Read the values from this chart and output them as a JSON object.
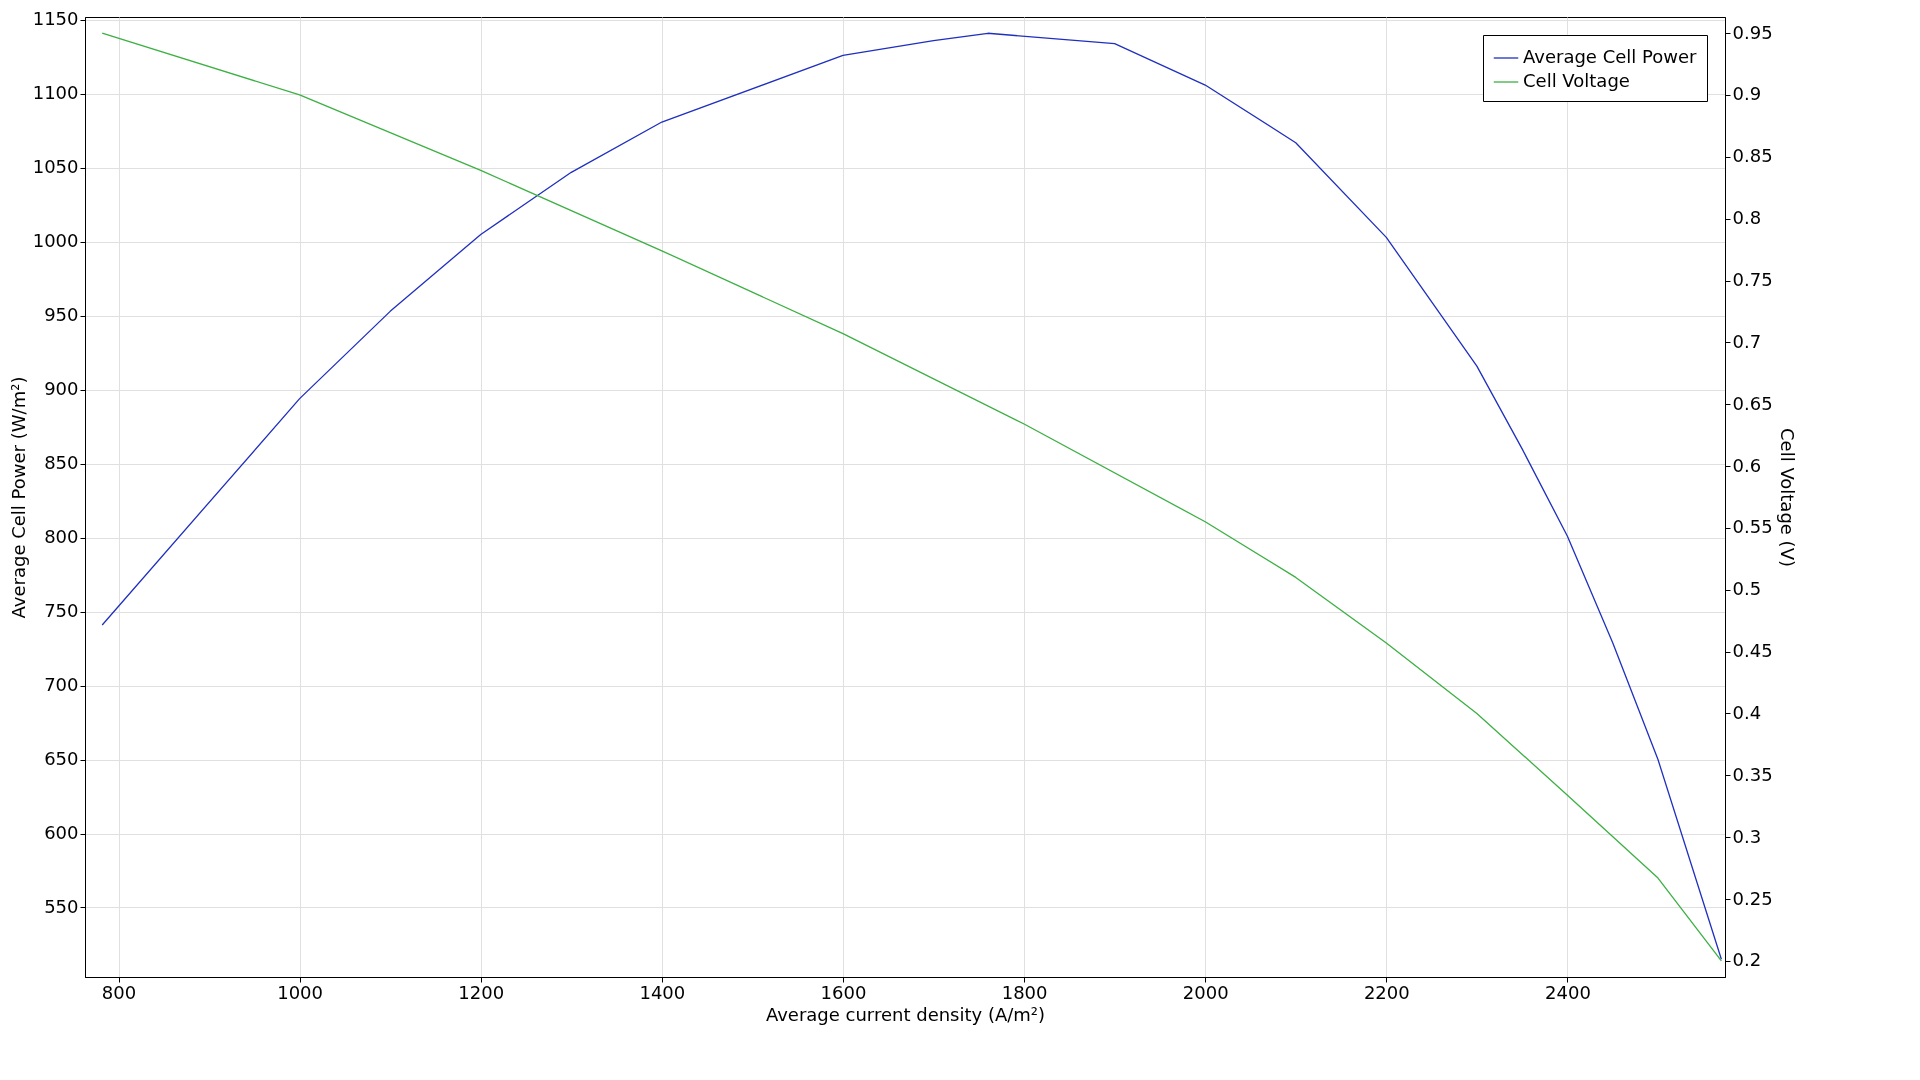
{
  "chart_data": {
    "type": "line",
    "xlabel": "Average current density (A/m²)",
    "ylabel": "Average Cell Power (W/m²)",
    "y2label": "Cell Voltage (V)",
    "xlim": [
      763,
      2574
    ],
    "xticks": [
      800,
      1000,
      1200,
      1400,
      1600,
      1800,
      2000,
      2200,
      2400
    ],
    "ylim": [
      503,
      1152
    ],
    "yticks": [
      550,
      600,
      650,
      700,
      750,
      800,
      850,
      900,
      950,
      1000,
      1050,
      1100,
      1150
    ],
    "y2lim": [
      0.187,
      0.963
    ],
    "y2ticks": [
      0.2,
      0.25,
      0.3,
      0.35,
      0.4,
      0.45,
      0.5,
      0.55,
      0.6,
      0.65,
      0.7,
      0.75,
      0.8,
      0.85,
      0.9,
      0.95
    ],
    "grid": true,
    "legend": "top right",
    "marker": "none",
    "line_style": "solid",
    "series": [
      {
        "name": "Average Cell Power",
        "color": "#1f2fbf",
        "x": [
          782,
          1000,
          1100,
          1200,
          1300,
          1400,
          1600,
          1700,
          1760,
          1900,
          2000,
          2100,
          2200,
          2300,
          2350,
          2400,
          2450,
          2500,
          2570
        ],
        "values": [
          741,
          894,
          953,
          1005,
          1047,
          1081,
          1126,
          1136,
          1141,
          1134,
          1106,
          1067,
          1003,
          916,
          860,
          801,
          729,
          650,
          515
        ]
      },
      {
        "name": "Cell Voltage",
        "color": "#3cb043",
        "axis": "y2",
        "x": [
          782,
          1000,
          1200,
          1400,
          1600,
          1800,
          2000,
          2100,
          2200,
          2300,
          2400,
          2500,
          2570
        ],
        "values": [
          0.95,
          0.9,
          0.839,
          0.774,
          0.707,
          0.634,
          0.555,
          0.51,
          0.457,
          0.4,
          0.334,
          0.267,
          0.2
        ]
      }
    ]
  }
}
